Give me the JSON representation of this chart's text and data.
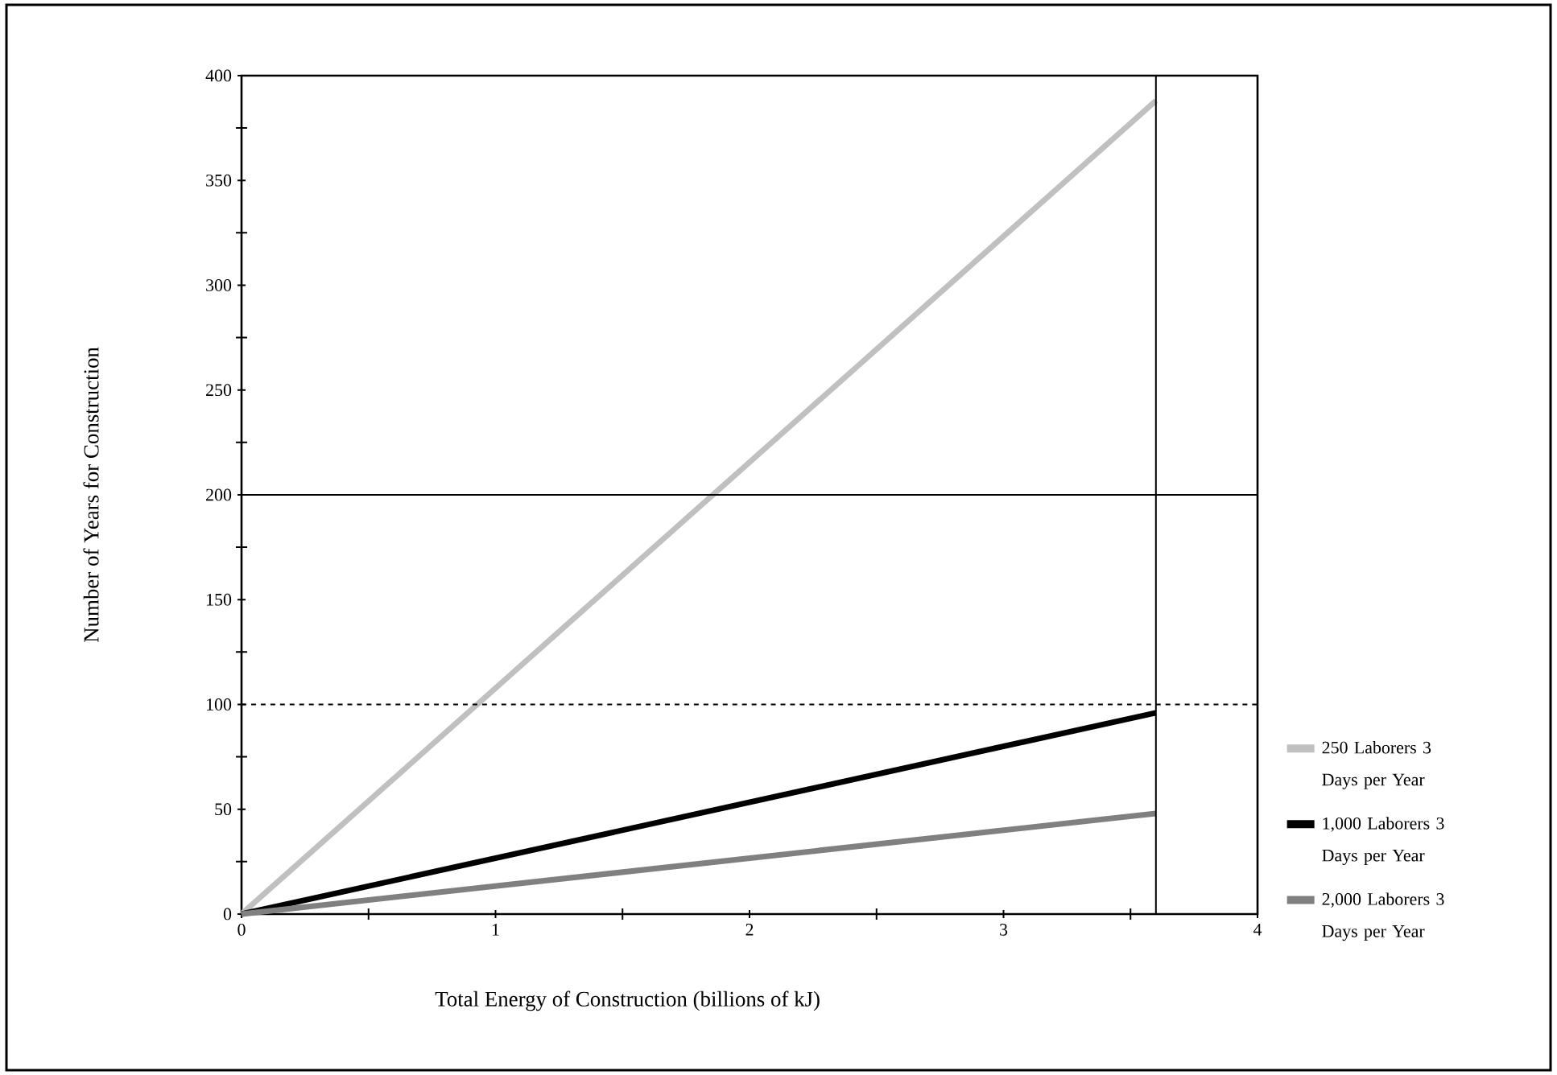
{
  "chart_data": {
    "type": "line",
    "xlabel": "Total Energy of Construction (billions of kJ)",
    "ylabel": "Number of Years for Construction",
    "xlim": [
      0,
      4
    ],
    "ylim": [
      0,
      400
    ],
    "xticks": [
      0,
      1,
      2,
      3,
      4
    ],
    "yticks": [
      0,
      50,
      100,
      150,
      200,
      250,
      300,
      350,
      400
    ],
    "x": [
      0,
      3.6
    ],
    "series": [
      {
        "name": "250 Laborers 3 Days per Year",
        "color": "#c0c0c0",
        "values": [
          0,
          388
        ]
      },
      {
        "name": "1,000 Laborers 3 Days per Year",
        "color": "#000000",
        "values": [
          0,
          96
        ]
      },
      {
        "name": "2,000 Laborers 3 Days per Year",
        "color": "#808080",
        "values": [
          0,
          48
        ]
      }
    ],
    "ref_lines": [
      {
        "axis": "y",
        "value": 200,
        "color": "#000000",
        "line_style": "solid"
      },
      {
        "axis": "y",
        "value": 100,
        "color": "#000000",
        "line_style": "dashed"
      },
      {
        "axis": "x",
        "value": 3.6,
        "color": "#000000",
        "line_style": "solid"
      }
    ],
    "legend": "right",
    "grid": false,
    "line_style": "solid"
  }
}
